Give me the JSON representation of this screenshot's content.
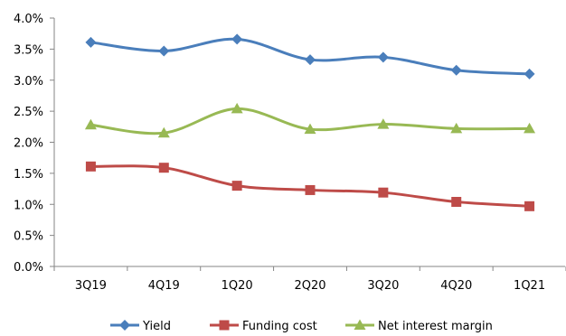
{
  "chart_data": {
    "type": "line",
    "title": "",
    "xlabel": "",
    "ylabel": "",
    "categories": [
      "3Q19",
      "4Q19",
      "1Q20",
      "2Q20",
      "3Q20",
      "4Q20",
      "1Q21"
    ],
    "y_ticks": [
      "0.0%",
      "0.5%",
      "1.0%",
      "1.5%",
      "2.0%",
      "2.5%",
      "3.0%",
      "3.5%",
      "4.0%"
    ],
    "ylim": [
      0,
      4
    ],
    "y_unit": "%",
    "grid": false,
    "smooth": true,
    "legend_position": "bottom",
    "series": [
      {
        "name": "Yield",
        "color": "#4a7ebb",
        "marker": "diamond",
        "values": [
          3.61,
          3.47,
          3.66,
          3.33,
          3.37,
          3.16,
          3.1
        ]
      },
      {
        "name": "Funding cost",
        "color": "#be4b48",
        "marker": "square",
        "values": [
          1.61,
          1.59,
          1.3,
          1.23,
          1.19,
          1.04,
          0.97
        ]
      },
      {
        "name": "Net interest margin",
        "color": "#98b954",
        "marker": "triangle",
        "values": [
          2.28,
          2.15,
          2.54,
          2.21,
          2.29,
          2.22,
          2.22
        ]
      }
    ]
  }
}
